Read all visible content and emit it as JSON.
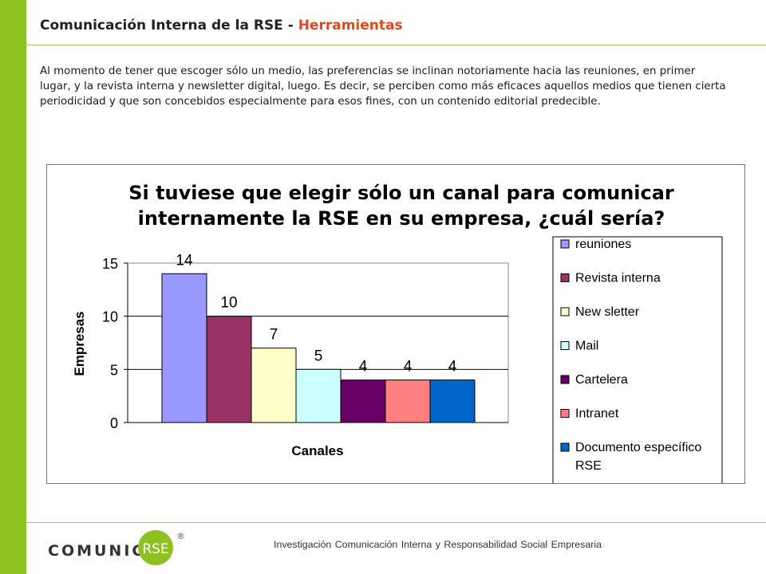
{
  "header": {
    "title_main": "Comunicación Interna de la RSE - ",
    "title_highlight": "Herramientas"
  },
  "intro_text": "Al momento de tener que escoger sólo un medio, las preferencias se inclinan notoriamente hacia las reuniones, en primer lugar, y la revista interna y newsletter digital, luego. Es decir, se perciben como más eficaces aquellos medios que tienen cierta periodicidad y que son concebidos especialmente para esos fines, con un contenido editorial predecible.",
  "chart_data": {
    "type": "bar",
    "title_line1": "Si tuviese que elegir sólo un canal para comunicar",
    "title_line2": "internamente la RSE en su empresa, ¿cuál sería?",
    "xlabel": "Canales",
    "ylabel": "Empresas",
    "ylim": [
      0,
      15
    ],
    "yticks": [
      0,
      5,
      10,
      15
    ],
    "grid": true,
    "legend_position": "right",
    "series": [
      {
        "name": "reuniones",
        "value": 14,
        "color": "#9999ff"
      },
      {
        "name": "Revista interna",
        "value": 10,
        "color": "#993366"
      },
      {
        "name": "New sletter",
        "value": 7,
        "color": "#ffffcc"
      },
      {
        "name": "Mail",
        "value": 5,
        "color": "#ccffff"
      },
      {
        "name": "Cartelera",
        "value": 4,
        "color": "#660066"
      },
      {
        "name": "Intranet",
        "value": 4,
        "color": "#ff8080"
      },
      {
        "name": "Documento específico RSE",
        "value": 4,
        "color": "#0066cc"
      }
    ]
  },
  "footer": {
    "text": "Investigación Comunicación Interna y Responsabilidad Social Empresaria",
    "logo_text": "COMUNICA",
    "logo_badge": "RSE",
    "logo_mark": "®"
  },
  "colors": {
    "accent_green": "#8cc11f",
    "title_orange": "#e0491b"
  }
}
